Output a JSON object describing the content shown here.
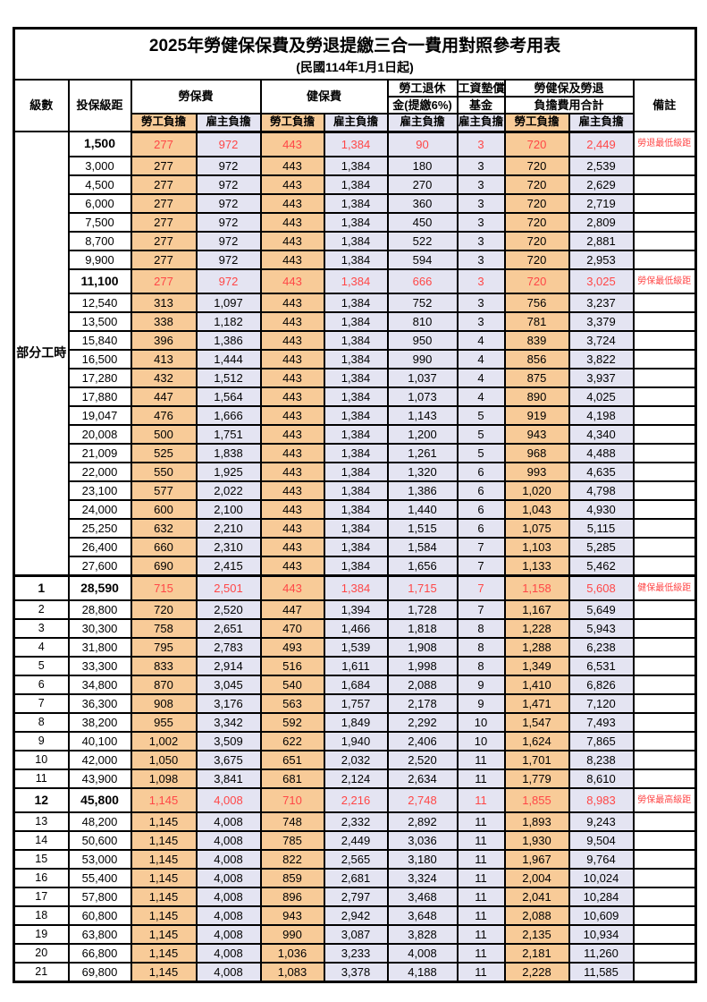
{
  "title": {
    "main": "2025年勞健保保費及勞退提繳三合一費用對照參考用表",
    "sub": "(民國114年1月1日起)"
  },
  "header": {
    "level": "級數",
    "salary": "投保級距",
    "labor_fee": "勞保費",
    "health_fee": "健保費",
    "pension_line1": "勞工退休",
    "pension_line2": "金(提繳6%)",
    "wage_fund_line1": "工資墊償",
    "wage_fund_line2": "基金",
    "total_line1": "勞健保及勞退",
    "total_line2": "負擔費用合計",
    "note": "備註",
    "employee_share": "勞工負擔",
    "employer_share": "雇主負擔"
  },
  "group_label": "部分工時",
  "colors": {
    "employee_bg": "#F8CB98",
    "employer_bg": "#E4E4F2",
    "highlight_text": "#FF4747",
    "note_text": "#FF6B6B",
    "border": "#000000"
  },
  "rows": [
    {
      "level": "",
      "salary": "1,500",
      "labor_emp": "277",
      "labor_er": "972",
      "health_emp": "443",
      "health_er": "1,384",
      "pension": "90",
      "fund": "3",
      "total_emp": "720",
      "total_er": "2,449",
      "note": "勞退最低級距",
      "highlight": true
    },
    {
      "level": "",
      "salary": "3,000",
      "labor_emp": "277",
      "labor_er": "972",
      "health_emp": "443",
      "health_er": "1,384",
      "pension": "180",
      "fund": "3",
      "total_emp": "720",
      "total_er": "2,539",
      "note": "",
      "highlight": false
    },
    {
      "level": "",
      "salary": "4,500",
      "labor_emp": "277",
      "labor_er": "972",
      "health_emp": "443",
      "health_er": "1,384",
      "pension": "270",
      "fund": "3",
      "total_emp": "720",
      "total_er": "2,629",
      "note": "",
      "highlight": false
    },
    {
      "level": "",
      "salary": "6,000",
      "labor_emp": "277",
      "labor_er": "972",
      "health_emp": "443",
      "health_er": "1,384",
      "pension": "360",
      "fund": "3",
      "total_emp": "720",
      "total_er": "2,719",
      "note": "",
      "highlight": false
    },
    {
      "level": "",
      "salary": "7,500",
      "labor_emp": "277",
      "labor_er": "972",
      "health_emp": "443",
      "health_er": "1,384",
      "pension": "450",
      "fund": "3",
      "total_emp": "720",
      "total_er": "2,809",
      "note": "",
      "highlight": false
    },
    {
      "level": "",
      "salary": "8,700",
      "labor_emp": "277",
      "labor_er": "972",
      "health_emp": "443",
      "health_er": "1,384",
      "pension": "522",
      "fund": "3",
      "total_emp": "720",
      "total_er": "2,881",
      "note": "",
      "highlight": false
    },
    {
      "level": "",
      "salary": "9,900",
      "labor_emp": "277",
      "labor_er": "972",
      "health_emp": "443",
      "health_er": "1,384",
      "pension": "594",
      "fund": "3",
      "total_emp": "720",
      "total_er": "2,953",
      "note": "",
      "highlight": false
    },
    {
      "level": "",
      "salary": "11,100",
      "labor_emp": "277",
      "labor_er": "972",
      "health_emp": "443",
      "health_er": "1,384",
      "pension": "666",
      "fund": "3",
      "total_emp": "720",
      "total_er": "3,025",
      "note": "勞保最低級距",
      "highlight": true
    },
    {
      "level": "",
      "salary": "12,540",
      "labor_emp": "313",
      "labor_er": "1,097",
      "health_emp": "443",
      "health_er": "1,384",
      "pension": "752",
      "fund": "3",
      "total_emp": "756",
      "total_er": "3,237",
      "note": "",
      "highlight": false
    },
    {
      "level": "",
      "salary": "13,500",
      "labor_emp": "338",
      "labor_er": "1,182",
      "health_emp": "443",
      "health_er": "1,384",
      "pension": "810",
      "fund": "3",
      "total_emp": "781",
      "total_er": "3,379",
      "note": "",
      "highlight": false
    },
    {
      "level": "",
      "salary": "15,840",
      "labor_emp": "396",
      "labor_er": "1,386",
      "health_emp": "443",
      "health_er": "1,384",
      "pension": "950",
      "fund": "4",
      "total_emp": "839",
      "total_er": "3,724",
      "note": "",
      "highlight": false
    },
    {
      "level": "",
      "salary": "16,500",
      "labor_emp": "413",
      "labor_er": "1,444",
      "health_emp": "443",
      "health_er": "1,384",
      "pension": "990",
      "fund": "4",
      "total_emp": "856",
      "total_er": "3,822",
      "note": "",
      "highlight": false
    },
    {
      "level": "",
      "salary": "17,280",
      "labor_emp": "432",
      "labor_er": "1,512",
      "health_emp": "443",
      "health_er": "1,384",
      "pension": "1,037",
      "fund": "4",
      "total_emp": "875",
      "total_er": "3,937",
      "note": "",
      "highlight": false
    },
    {
      "level": "",
      "salary": "17,880",
      "labor_emp": "447",
      "labor_er": "1,564",
      "health_emp": "443",
      "health_er": "1,384",
      "pension": "1,073",
      "fund": "4",
      "total_emp": "890",
      "total_er": "4,025",
      "note": "",
      "highlight": false
    },
    {
      "level": "",
      "salary": "19,047",
      "labor_emp": "476",
      "labor_er": "1,666",
      "health_emp": "443",
      "health_er": "1,384",
      "pension": "1,143",
      "fund": "5",
      "total_emp": "919",
      "total_er": "4,198",
      "note": "",
      "highlight": false
    },
    {
      "level": "",
      "salary": "20,008",
      "labor_emp": "500",
      "labor_er": "1,751",
      "health_emp": "443",
      "health_er": "1,384",
      "pension": "1,200",
      "fund": "5",
      "total_emp": "943",
      "total_er": "4,340",
      "note": "",
      "highlight": false
    },
    {
      "level": "",
      "salary": "21,009",
      "labor_emp": "525",
      "labor_er": "1,838",
      "health_emp": "443",
      "health_er": "1,384",
      "pension": "1,261",
      "fund": "5",
      "total_emp": "968",
      "total_er": "4,488",
      "note": "",
      "highlight": false
    },
    {
      "level": "",
      "salary": "22,000",
      "labor_emp": "550",
      "labor_er": "1,925",
      "health_emp": "443",
      "health_er": "1,384",
      "pension": "1,320",
      "fund": "6",
      "total_emp": "993",
      "total_er": "4,635",
      "note": "",
      "highlight": false
    },
    {
      "level": "",
      "salary": "23,100",
      "labor_emp": "577",
      "labor_er": "2,022",
      "health_emp": "443",
      "health_er": "1,384",
      "pension": "1,386",
      "fund": "6",
      "total_emp": "1,020",
      "total_er": "4,798",
      "note": "",
      "highlight": false
    },
    {
      "level": "",
      "salary": "24,000",
      "labor_emp": "600",
      "labor_er": "2,100",
      "health_emp": "443",
      "health_er": "1,384",
      "pension": "1,440",
      "fund": "6",
      "total_emp": "1,043",
      "total_er": "4,930",
      "note": "",
      "highlight": false
    },
    {
      "level": "",
      "salary": "25,250",
      "labor_emp": "632",
      "labor_er": "2,210",
      "health_emp": "443",
      "health_er": "1,384",
      "pension": "1,515",
      "fund": "6",
      "total_emp": "1,075",
      "total_er": "5,115",
      "note": "",
      "highlight": false
    },
    {
      "level": "",
      "salary": "26,400",
      "labor_emp": "660",
      "labor_er": "2,310",
      "health_emp": "443",
      "health_er": "1,384",
      "pension": "1,584",
      "fund": "7",
      "total_emp": "1,103",
      "total_er": "5,285",
      "note": "",
      "highlight": false
    },
    {
      "level": "",
      "salary": "27,600",
      "labor_emp": "690",
      "labor_er": "2,415",
      "health_emp": "443",
      "health_er": "1,384",
      "pension": "1,656",
      "fund": "7",
      "total_emp": "1,133",
      "total_er": "5,462",
      "note": "",
      "highlight": false
    },
    {
      "level": "1",
      "salary": "28,590",
      "labor_emp": "715",
      "labor_er": "2,501",
      "health_emp": "443",
      "health_er": "1,384",
      "pension": "1,715",
      "fund": "7",
      "total_emp": "1,158",
      "total_er": "5,608",
      "note": "健保最低級距",
      "highlight": true
    },
    {
      "level": "2",
      "salary": "28,800",
      "labor_emp": "720",
      "labor_er": "2,520",
      "health_emp": "447",
      "health_er": "1,394",
      "pension": "1,728",
      "fund": "7",
      "total_emp": "1,167",
      "total_er": "5,649",
      "note": "",
      "highlight": false
    },
    {
      "level": "3",
      "salary": "30,300",
      "labor_emp": "758",
      "labor_er": "2,651",
      "health_emp": "470",
      "health_er": "1,466",
      "pension": "1,818",
      "fund": "8",
      "total_emp": "1,228",
      "total_er": "5,943",
      "note": "",
      "highlight": false
    },
    {
      "level": "4",
      "salary": "31,800",
      "labor_emp": "795",
      "labor_er": "2,783",
      "health_emp": "493",
      "health_er": "1,539",
      "pension": "1,908",
      "fund": "8",
      "total_emp": "1,288",
      "total_er": "6,238",
      "note": "",
      "highlight": false
    },
    {
      "level": "5",
      "salary": "33,300",
      "labor_emp": "833",
      "labor_er": "2,914",
      "health_emp": "516",
      "health_er": "1,611",
      "pension": "1,998",
      "fund": "8",
      "total_emp": "1,349",
      "total_er": "6,531",
      "note": "",
      "highlight": false
    },
    {
      "level": "6",
      "salary": "34,800",
      "labor_emp": "870",
      "labor_er": "3,045",
      "health_emp": "540",
      "health_er": "1,684",
      "pension": "2,088",
      "fund": "9",
      "total_emp": "1,410",
      "total_er": "6,826",
      "note": "",
      "highlight": false
    },
    {
      "level": "7",
      "salary": "36,300",
      "labor_emp": "908",
      "labor_er": "3,176",
      "health_emp": "563",
      "health_er": "1,757",
      "pension": "2,178",
      "fund": "9",
      "total_emp": "1,471",
      "total_er": "7,120",
      "note": "",
      "highlight": false
    },
    {
      "level": "8",
      "salary": "38,200",
      "labor_emp": "955",
      "labor_er": "3,342",
      "health_emp": "592",
      "health_er": "1,849",
      "pension": "2,292",
      "fund": "10",
      "total_emp": "1,547",
      "total_er": "7,493",
      "note": "",
      "highlight": false
    },
    {
      "level": "9",
      "salary": "40,100",
      "labor_emp": "1,002",
      "labor_er": "3,509",
      "health_emp": "622",
      "health_er": "1,940",
      "pension": "2,406",
      "fund": "10",
      "total_emp": "1,624",
      "total_er": "7,865",
      "note": "",
      "highlight": false
    },
    {
      "level": "10",
      "salary": "42,000",
      "labor_emp": "1,050",
      "labor_er": "3,675",
      "health_emp": "651",
      "health_er": "2,032",
      "pension": "2,520",
      "fund": "11",
      "total_emp": "1,701",
      "total_er": "8,238",
      "note": "",
      "highlight": false
    },
    {
      "level": "11",
      "salary": "43,900",
      "labor_emp": "1,098",
      "labor_er": "3,841",
      "health_emp": "681",
      "health_er": "2,124",
      "pension": "2,634",
      "fund": "11",
      "total_emp": "1,779",
      "total_er": "8,610",
      "note": "",
      "highlight": false
    },
    {
      "level": "12",
      "salary": "45,800",
      "labor_emp": "1,145",
      "labor_er": "4,008",
      "health_emp": "710",
      "health_er": "2,216",
      "pension": "2,748",
      "fund": "11",
      "total_emp": "1,855",
      "total_er": "8,983",
      "note": "勞保最高級距",
      "highlight": true
    },
    {
      "level": "13",
      "salary": "48,200",
      "labor_emp": "1,145",
      "labor_er": "4,008",
      "health_emp": "748",
      "health_er": "2,332",
      "pension": "2,892",
      "fund": "11",
      "total_emp": "1,893",
      "total_er": "9,243",
      "note": "",
      "highlight": false
    },
    {
      "level": "14",
      "salary": "50,600",
      "labor_emp": "1,145",
      "labor_er": "4,008",
      "health_emp": "785",
      "health_er": "2,449",
      "pension": "3,036",
      "fund": "11",
      "total_emp": "1,930",
      "total_er": "9,504",
      "note": "",
      "highlight": false
    },
    {
      "level": "15",
      "salary": "53,000",
      "labor_emp": "1,145",
      "labor_er": "4,008",
      "health_emp": "822",
      "health_er": "2,565",
      "pension": "3,180",
      "fund": "11",
      "total_emp": "1,967",
      "total_er": "9,764",
      "note": "",
      "highlight": false
    },
    {
      "level": "16",
      "salary": "55,400",
      "labor_emp": "1,145",
      "labor_er": "4,008",
      "health_emp": "859",
      "health_er": "2,681",
      "pension": "3,324",
      "fund": "11",
      "total_emp": "2,004",
      "total_er": "10,024",
      "note": "",
      "highlight": false
    },
    {
      "level": "17",
      "salary": "57,800",
      "labor_emp": "1,145",
      "labor_er": "4,008",
      "health_emp": "896",
      "health_er": "2,797",
      "pension": "3,468",
      "fund": "11",
      "total_emp": "2,041",
      "total_er": "10,284",
      "note": "",
      "highlight": false
    },
    {
      "level": "18",
      "salary": "60,800",
      "labor_emp": "1,145",
      "labor_er": "4,008",
      "health_emp": "943",
      "health_er": "2,942",
      "pension": "3,648",
      "fund": "11",
      "total_emp": "2,088",
      "total_er": "10,609",
      "note": "",
      "highlight": false
    },
    {
      "level": "19",
      "salary": "63,800",
      "labor_emp": "1,145",
      "labor_er": "4,008",
      "health_emp": "990",
      "health_er": "3,087",
      "pension": "3,828",
      "fund": "11",
      "total_emp": "2,135",
      "total_er": "10,934",
      "note": "",
      "highlight": false
    },
    {
      "level": "20",
      "salary": "66,800",
      "labor_emp": "1,145",
      "labor_er": "4,008",
      "health_emp": "1,036",
      "health_er": "3,233",
      "pension": "4,008",
      "fund": "11",
      "total_emp": "2,181",
      "total_er": "11,260",
      "note": "",
      "highlight": false
    },
    {
      "level": "21",
      "salary": "69,800",
      "labor_emp": "1,145",
      "labor_er": "4,008",
      "health_emp": "1,083",
      "health_er": "3,378",
      "pension": "4,188",
      "fund": "11",
      "total_emp": "2,228",
      "total_er": "11,585",
      "note": "",
      "highlight": false
    }
  ]
}
